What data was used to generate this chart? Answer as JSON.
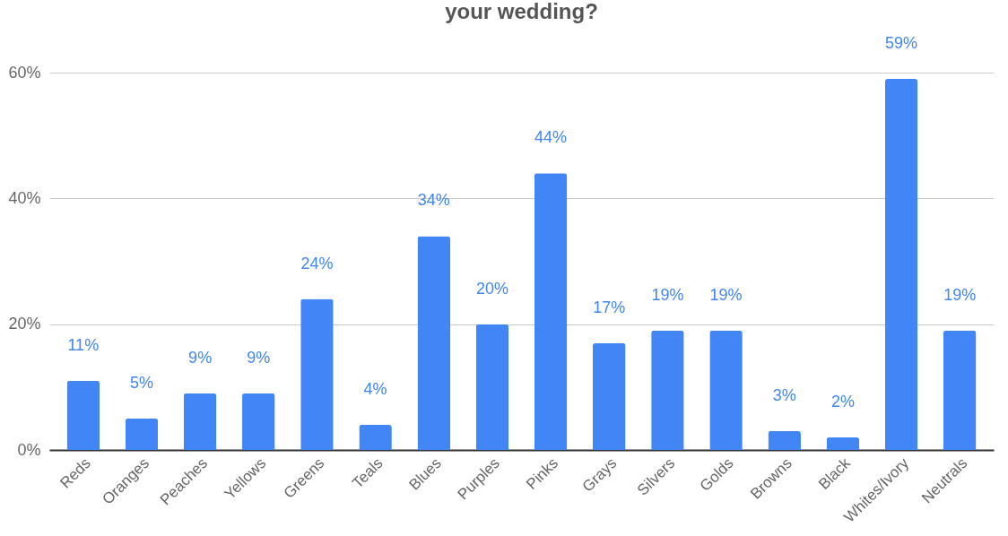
{
  "chart_data": {
    "type": "bar",
    "title": "your wedding?",
    "categories": [
      "Reds",
      "Oranges",
      "Peaches",
      "Yellows",
      "Greens",
      "Teals",
      "Blues",
      "Purples",
      "Pinks",
      "Grays",
      "Silvers",
      "Golds",
      "Browns",
      "Black",
      "Whites/Ivory",
      "Neutrals"
    ],
    "values": [
      11,
      5,
      9,
      9,
      24,
      4,
      34,
      20,
      44,
      17,
      19,
      19,
      3,
      2,
      59,
      19
    ],
    "value_labels": [
      "11%",
      "5%",
      "9%",
      "9%",
      "24%",
      "4%",
      "34%",
      "20%",
      "44%",
      "17%",
      "19%",
      "19%",
      "3%",
      "2%",
      "59%",
      "19%"
    ],
    "color": "#4285f4",
    "ylim": [
      0,
      60
    ],
    "yticks": [
      {
        "value": 0,
        "label": "0%"
      },
      {
        "value": 20,
        "label": "20%"
      },
      {
        "value": 40,
        "label": "40%"
      },
      {
        "value": 60,
        "label": "60%"
      }
    ],
    "grid": "y"
  }
}
